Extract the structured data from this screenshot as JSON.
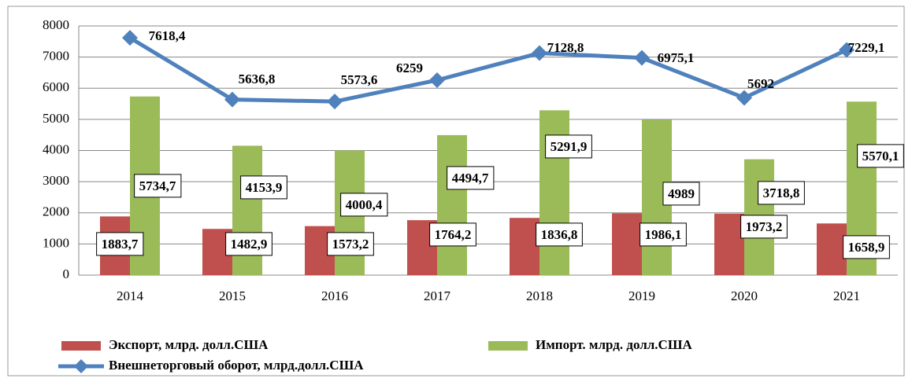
{
  "chart_data": {
    "type": "bar",
    "categories": [
      "2014",
      "2015",
      "2016",
      "2017",
      "2018",
      "2019",
      "2020",
      "2021"
    ],
    "series": [
      {
        "name": "Экспорт, млрд. долл.США",
        "type": "bar",
        "color": "#c0504d",
        "values": [
          1883.7,
          1482.9,
          1573.2,
          1764.2,
          1836.8,
          1986.1,
          1973.2,
          1658.9
        ],
        "value_labels": [
          "1883,7",
          "1482,9",
          "1573,2",
          "1764,2",
          "1836,8",
          "1986,1",
          "1973,2",
          "1658,9"
        ]
      },
      {
        "name": "Импорт. млрд. долл.США",
        "type": "bar",
        "color": "#9bbb59",
        "values": [
          5734.7,
          4153.9,
          4000.4,
          4494.7,
          5291.9,
          4989,
          3718.8,
          5570.1
        ],
        "value_labels": [
          "5734,7",
          "4153,9",
          "4000,4",
          "4494,7",
          "5291,9",
          "4989",
          "3718,8",
          "5570,1"
        ]
      },
      {
        "name": "Внешнеторговый оборот, млрд.долл.США",
        "type": "line",
        "color": "#4f81bd",
        "values": [
          7618.4,
          5636.8,
          5573.6,
          6259,
          7128.8,
          6975.1,
          5692,
          7229.1
        ],
        "value_labels": [
          "7618,4",
          "5636,8",
          "5573,6",
          "6259",
          "7128,8",
          "6975,1",
          "5692",
          "7229,1"
        ]
      }
    ],
    "ylim": [
      0,
      8000
    ],
    "yticks": [
      0,
      1000,
      2000,
      3000,
      4000,
      5000,
      6000,
      7000,
      8000
    ],
    "grid": true
  }
}
